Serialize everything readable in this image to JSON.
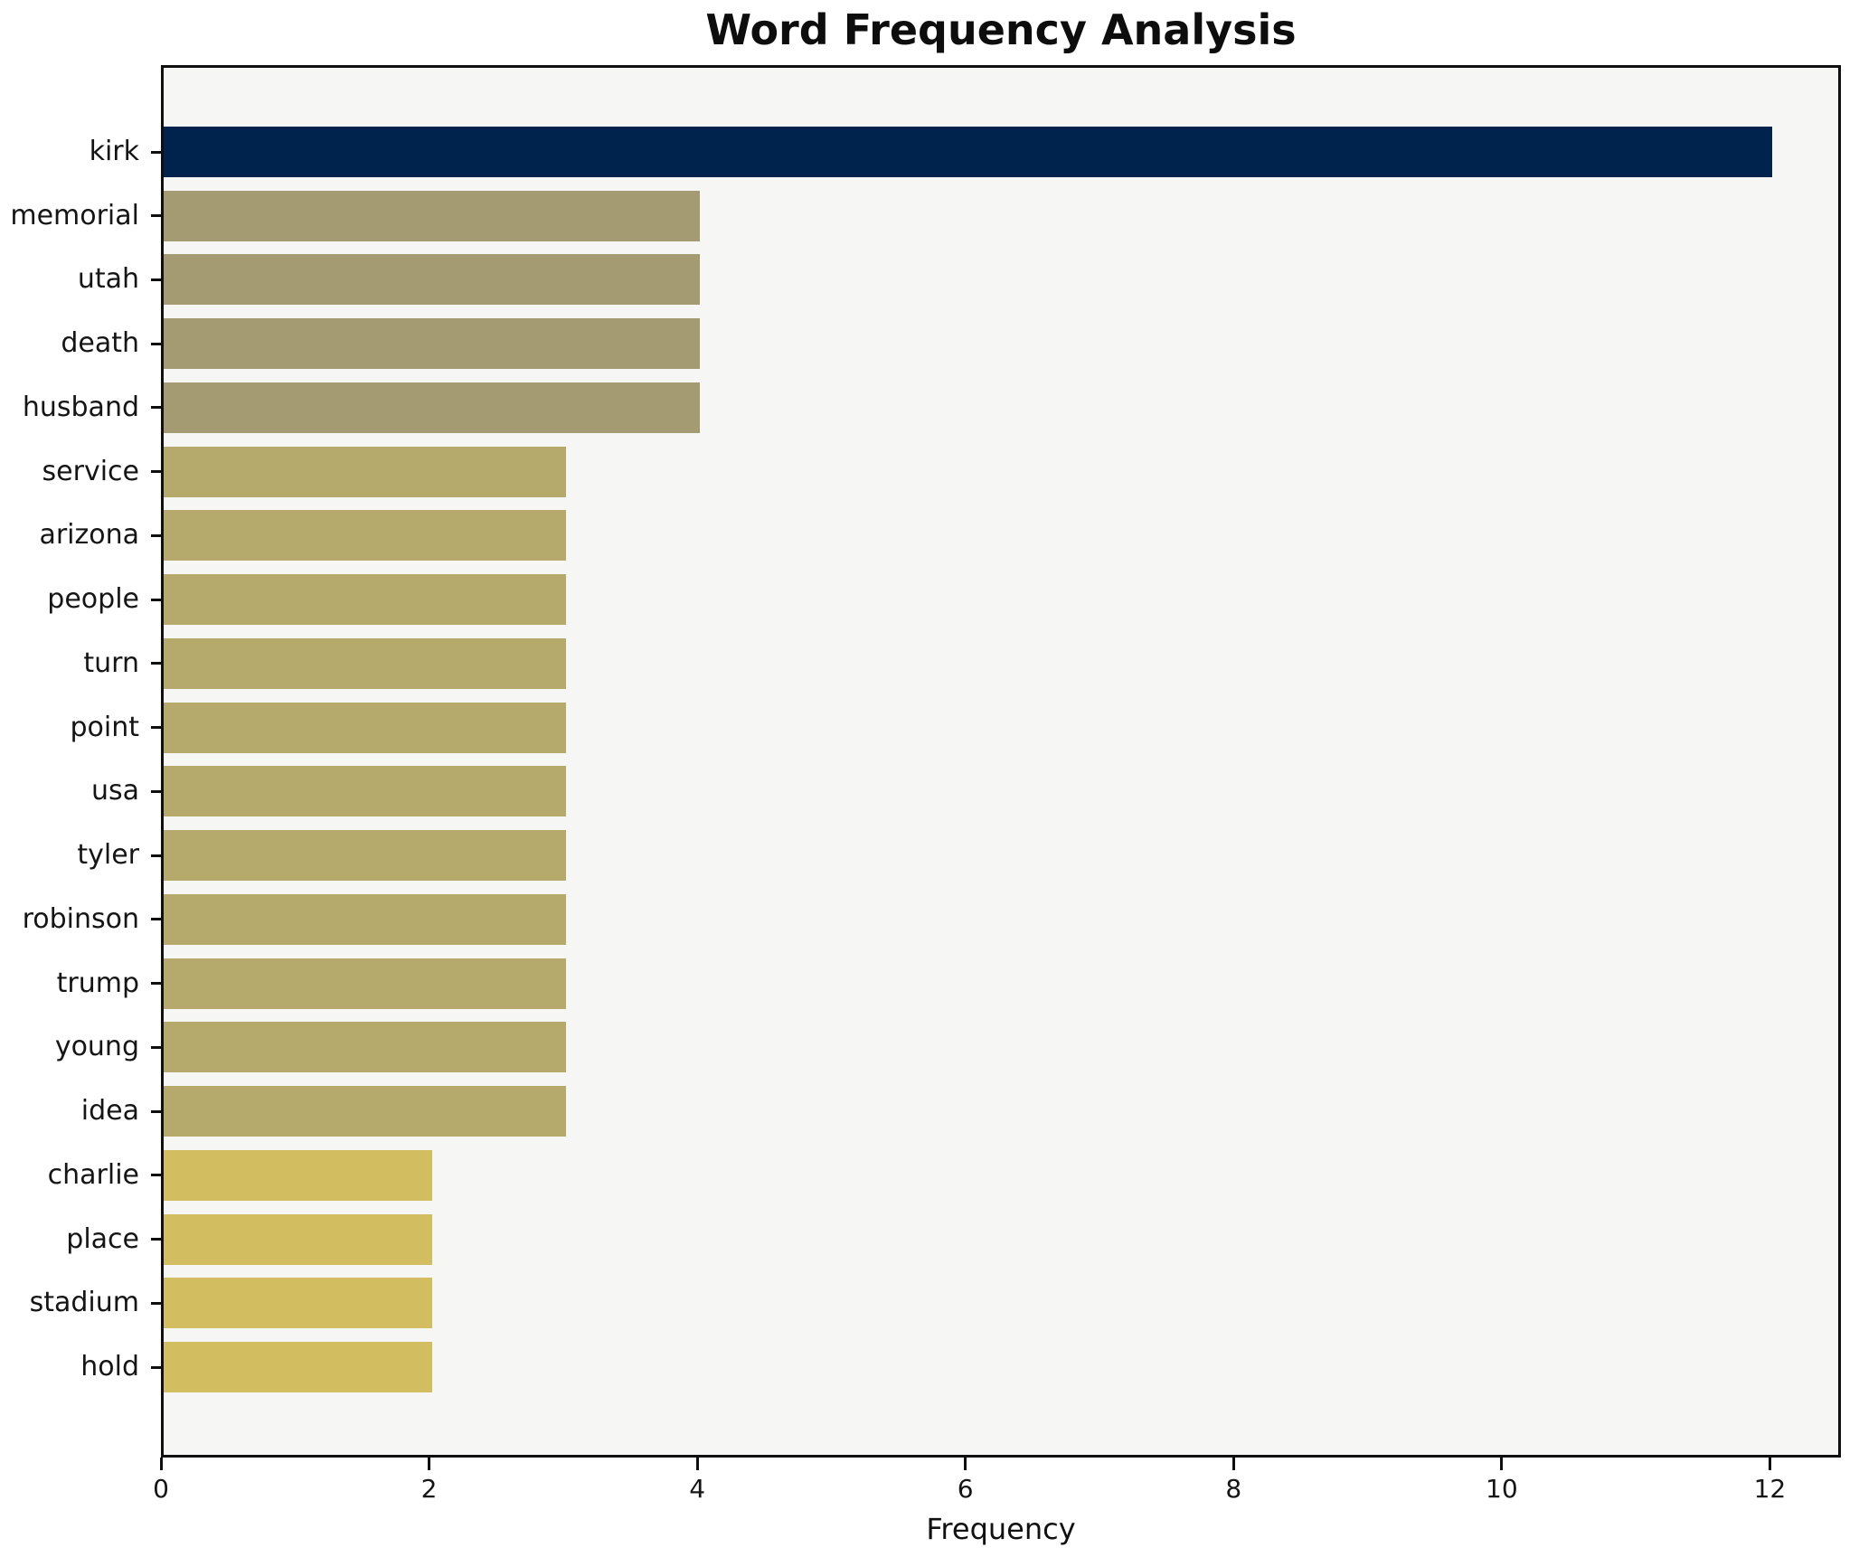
{
  "chart_data": {
    "type": "bar",
    "orientation": "horizontal",
    "title": "Word Frequency Analysis",
    "xlabel": "Frequency",
    "ylabel": "",
    "categories": [
      "kirk",
      "memorial",
      "utah",
      "death",
      "husband",
      "service",
      "arizona",
      "people",
      "turn",
      "point",
      "usa",
      "tyler",
      "robinson",
      "trump",
      "young",
      "idea",
      "charlie",
      "place",
      "stadium",
      "hold"
    ],
    "values": [
      12,
      4,
      4,
      4,
      4,
      3,
      3,
      3,
      3,
      3,
      3,
      3,
      3,
      3,
      3,
      3,
      2,
      2,
      2,
      2
    ],
    "bar_colors": [
      "#00234E",
      "#A49B72",
      "#A49B72",
      "#A49B72",
      "#A49B72",
      "#B5AA6C",
      "#B5AA6C",
      "#B5AA6C",
      "#B5AA6C",
      "#B5AA6C",
      "#B5AA6C",
      "#B5AA6C",
      "#B5AA6C",
      "#B5AA6C",
      "#B5AA6C",
      "#B5AA6C",
      "#D2BE61",
      "#D2BE61",
      "#D2BE61",
      "#D2BE61"
    ],
    "xticks": [
      0,
      2,
      4,
      6,
      8,
      10,
      12
    ],
    "xlim": [
      0,
      12.53
    ],
    "grid": false,
    "legend": null,
    "plot_background": "#F6F6F5",
    "figure_background": "#FFFFFF",
    "axis_color": "#0F0F0F"
  }
}
